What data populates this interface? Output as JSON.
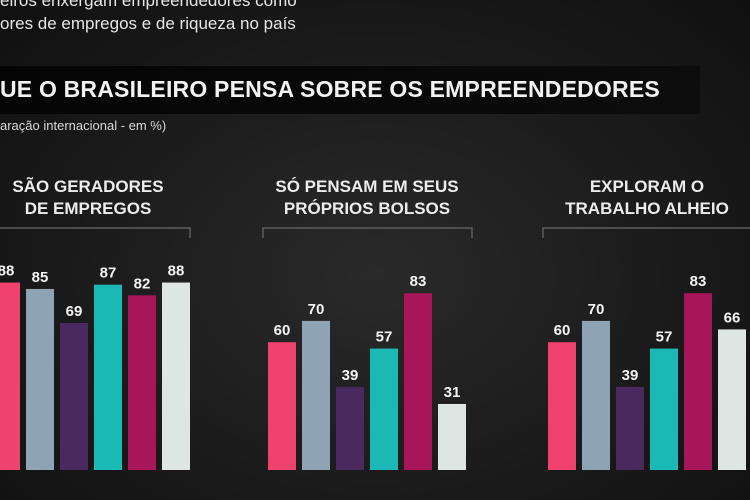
{
  "header": {
    "line1": "eiros enxergam empreendedores como",
    "line2": "ores de empregos e de riqueza no país",
    "title": "UE O BRASILEIRO PENSA SOBRE OS EMPREENDEDORES",
    "subtitle": "aração internacional - em %)"
  },
  "colors": {
    "background": "#1b1b1b",
    "bar_palette": [
      "#f0426e",
      "#8ea3b3",
      "#4a2a5e",
      "#1ab9b5",
      "#a8165a",
      "#dde6e2"
    ]
  },
  "chart_data": [
    {
      "type": "bar",
      "title_lines": [
        "SÃO GERADORES",
        "DE EMPREGOS"
      ],
      "values": [
        88,
        85,
        69,
        87,
        82,
        88
      ],
      "labels": [
        "88",
        "85",
        "69",
        "87",
        "82",
        "88"
      ]
    },
    {
      "type": "bar",
      "title_lines": [
        "SÓ PENSAM EM SEUS",
        "PRÓPRIOS BOLSOS"
      ],
      "values": [
        60,
        70,
        39,
        57,
        83,
        31
      ],
      "labels": [
        "60",
        "70",
        "39",
        "57",
        "83",
        "31"
      ]
    },
    {
      "type": "bar",
      "title_lines": [
        "EXPLORAM O",
        "TRABALHO ALHEIO"
      ],
      "values": [
        60,
        70,
        39,
        57,
        83,
        66
      ],
      "labels": [
        "60",
        "70",
        "39",
        "57",
        "83",
        "66"
      ]
    }
  ]
}
